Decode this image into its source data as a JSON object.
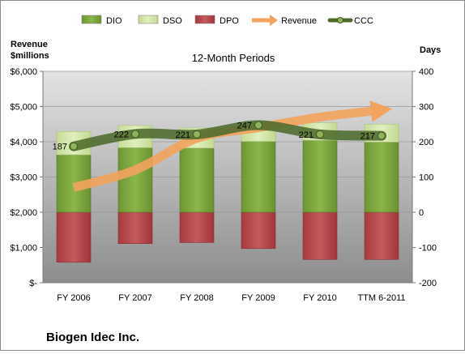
{
  "chart_data": {
    "type": "bar",
    "title": "12-Month Periods",
    "company": "Biogen Idec Inc.",
    "categories": [
      "FY 2006",
      "FY 2007",
      "FY 2008",
      "FY 2009",
      "FY 2010",
      "TTM 6-2011"
    ],
    "left_axis": {
      "label_line1": "Revenue",
      "label_line2": "$millions",
      "range": [
        0,
        6000
      ],
      "ticks": [
        0,
        1000,
        2000,
        3000,
        4000,
        5000,
        6000
      ],
      "tick_labels": [
        "$-",
        "$1,000",
        "$2,000",
        "$3,000",
        "$4,000",
        "$5,000",
        "$6,000"
      ]
    },
    "right_axis": {
      "label": "Days",
      "range": [
        -200,
        400
      ],
      "ticks": [
        -200,
        -100,
        0,
        100,
        200,
        300,
        400
      ],
      "tick_labels": [
        "-200",
        "-100",
        "0",
        "100",
        "200",
        "300",
        "400"
      ]
    },
    "legend": {
      "position": "top",
      "entries": [
        {
          "key": "dio",
          "label": "DIO"
        },
        {
          "key": "dso",
          "label": "DSO"
        },
        {
          "key": "dpo",
          "label": "DPO"
        },
        {
          "key": "revenue",
          "label": "Revenue"
        },
        {
          "key": "ccc",
          "label": "CCC"
        }
      ]
    },
    "series": [
      {
        "key": "dio",
        "name": "DIO",
        "axis": "right",
        "type": "bar",
        "values": [
          163,
          183,
          182,
          201,
          204,
          199
        ]
      },
      {
        "key": "dso",
        "name": "DSO",
        "axis": "right",
        "type": "bar_stacked_on_dio",
        "values": [
          66,
          63,
          57,
          45,
          50,
          51
        ]
      },
      {
        "key": "dpo",
        "name": "DPO",
        "axis": "right",
        "type": "bar_negative",
        "values": [
          -142,
          -89,
          -86,
          -103,
          -134,
          -134
        ]
      },
      {
        "key": "revenue",
        "name": "Revenue",
        "axis": "left",
        "type": "line",
        "values": [
          2700,
          3200,
          4100,
          4400,
          4700,
          4900
        ]
      },
      {
        "key": "ccc",
        "name": "CCC",
        "axis": "right",
        "type": "line",
        "values": [
          187,
          222,
          221,
          247,
          221,
          217
        ],
        "data_labels": [
          "187",
          "222",
          "221",
          "247",
          "221",
          "217"
        ]
      }
    ],
    "colors": {
      "dio": "#78a33b",
      "dso": "#d3e6a6",
      "dpo": "#b8474b",
      "revenue": "#f3a35d",
      "ccc": "#4d6b2c",
      "plot_top": "#e3e3e3",
      "plot_bottom": "#8d8d8d"
    },
    "grid": true
  }
}
